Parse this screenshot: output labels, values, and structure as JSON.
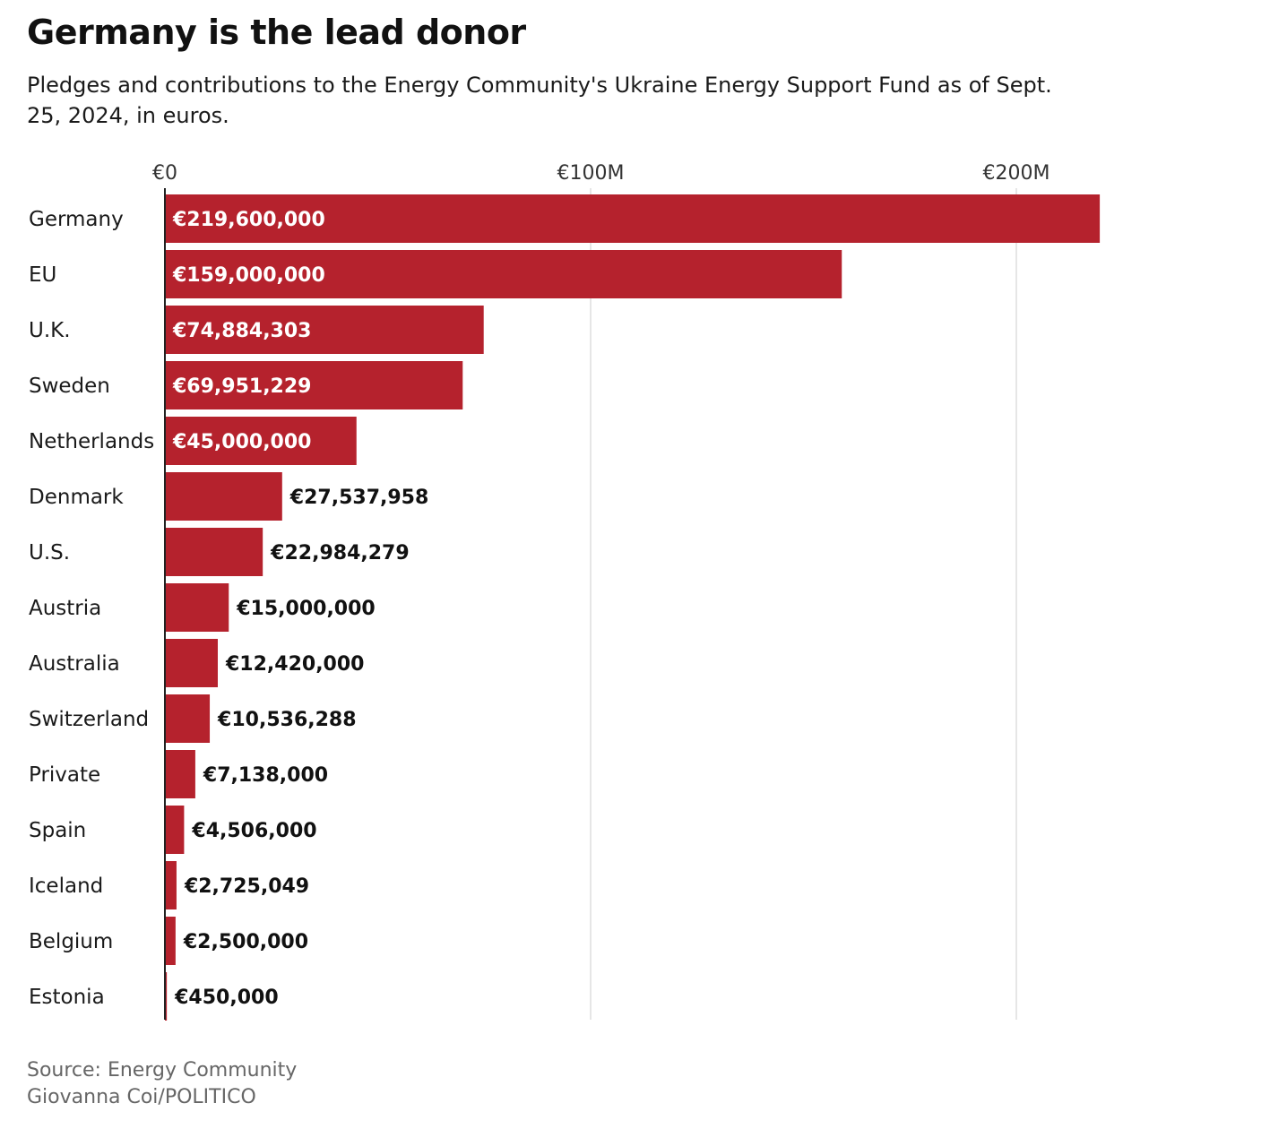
{
  "title": "Germany is the lead donor",
  "subtitle": "Pledges and contributions to the Energy Community's Ukraine Energy Support Fund as of Sept. 25, 2024, in euros.",
  "source": "Source: Energy Community",
  "credit": "Giovanna Coi/POLITICO",
  "colors": {
    "bar": "#b5222d",
    "gridline": "#dddddd",
    "axis": "#222222",
    "label_inside": "#ffffff",
    "label_outside": "#111111"
  },
  "chart_data": {
    "type": "bar",
    "orientation": "horizontal",
    "xlim": [
      0,
      220000000
    ],
    "x_ticks": [
      {
        "value": 0,
        "label": "€0"
      },
      {
        "value": 100000000,
        "label": "€100M"
      },
      {
        "value": 200000000,
        "label": "€200M"
      }
    ],
    "grid": true,
    "categories": [
      "Germany",
      "EU",
      "U.K.",
      "Sweden",
      "Netherlands",
      "Denmark",
      "U.S.",
      "Austria",
      "Australia",
      "Switzerland",
      "Private",
      "Spain",
      "Iceland",
      "Belgium",
      "Estonia"
    ],
    "values": [
      219600000,
      159000000,
      74884303,
      69951229,
      45000000,
      27537958,
      22984279,
      15000000,
      12420000,
      10536288,
      7138000,
      4506000,
      2725049,
      2500000,
      450000
    ],
    "labels": [
      "€219,600,000",
      "€159,000,000",
      "€74,884,303",
      "€69,951,229",
      "€45,000,000",
      "€27,537,958",
      "€22,984,279",
      "€15,000,000",
      "€12,420,000",
      "€10,536,288",
      "€7,138,000",
      "€4,506,000",
      "€2,725,049",
      "€2,500,000",
      "€450,000"
    ]
  }
}
